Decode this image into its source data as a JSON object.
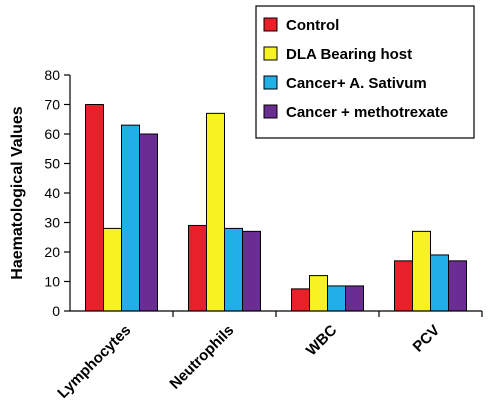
{
  "chart_data": {
    "type": "bar",
    "ylabel": "Haematological Values",
    "xlabel": "",
    "ylim": [
      0,
      80
    ],
    "yticks": [
      0,
      10,
      20,
      30,
      40,
      50,
      60,
      70,
      80
    ],
    "grid": false,
    "legend_position": "top-right",
    "categories": [
      "Lymphocytes",
      "Neutrophils",
      "WBC",
      "PCV"
    ],
    "series": [
      {
        "name": "Control",
        "color": "#e8202a",
        "values": [
          70,
          29,
          7.5,
          17
        ]
      },
      {
        "name": "DLA Bearing host",
        "color": "#f7f323",
        "values": [
          28,
          67,
          12,
          27
        ]
      },
      {
        "name": "Cancer+ A. Sativum",
        "color": "#22aee6",
        "values": [
          63,
          28,
          8.5,
          19
        ]
      },
      {
        "name": "Cancer + methotrexate",
        "color": "#6a2d91",
        "values": [
          60,
          27,
          8.5,
          17
        ]
      }
    ]
  }
}
